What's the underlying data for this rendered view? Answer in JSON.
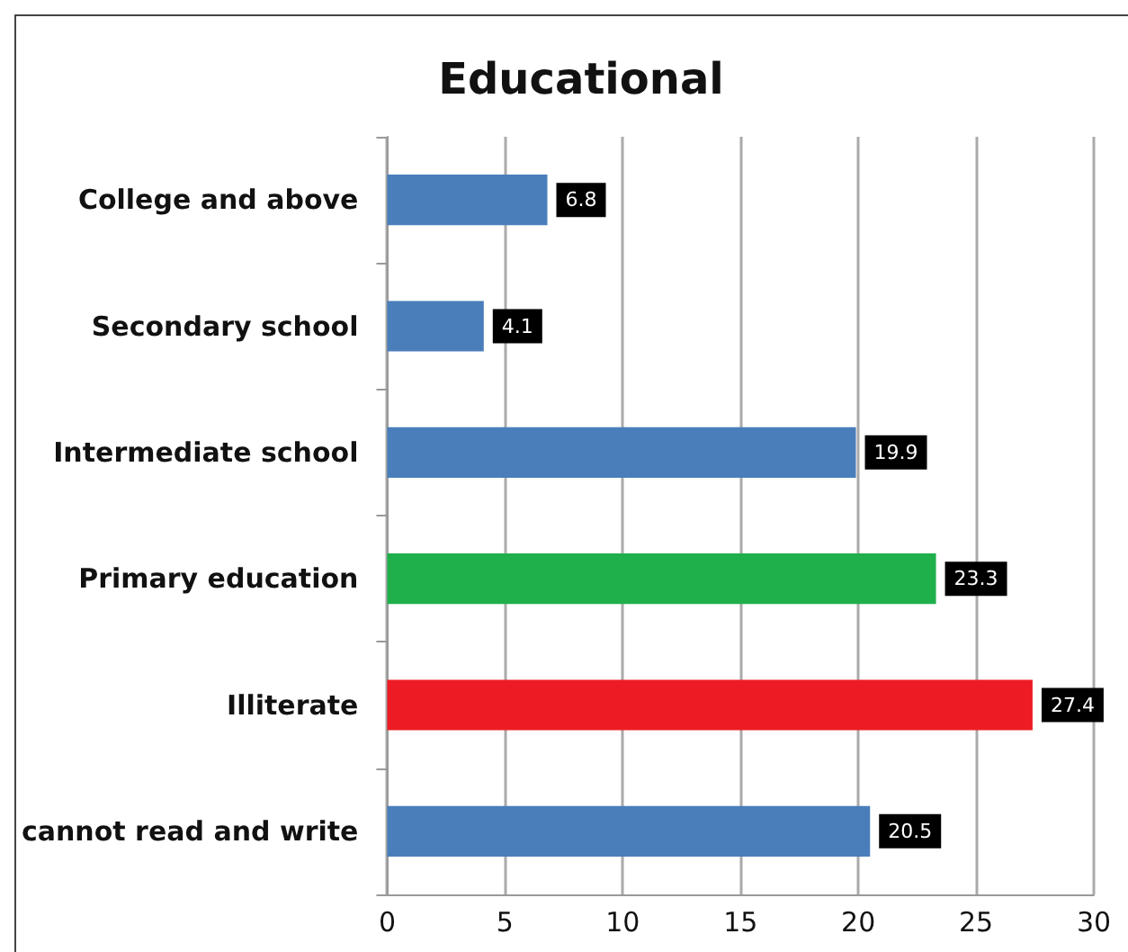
{
  "chart_data": {
    "type": "bar",
    "orientation": "horizontal",
    "title": "Educational",
    "categories": [
      "College and above",
      "Secondary school",
      "Intermediate school",
      "Primary education",
      "Illiterate",
      "cannot read and write"
    ],
    "values": [
      6.8,
      4.1,
      19.9,
      23.3,
      27.4,
      20.5
    ],
    "colors": [
      "#4a7ebb",
      "#4a7ebb",
      "#4a7ebb",
      "#1fb04b",
      "#ed1c24",
      "#4a7ebb"
    ],
    "xlim": [
      0,
      30
    ],
    "xticks": [
      0,
      5,
      10,
      15,
      20,
      25,
      30
    ],
    "grid": "x",
    "data_labels": true
  }
}
